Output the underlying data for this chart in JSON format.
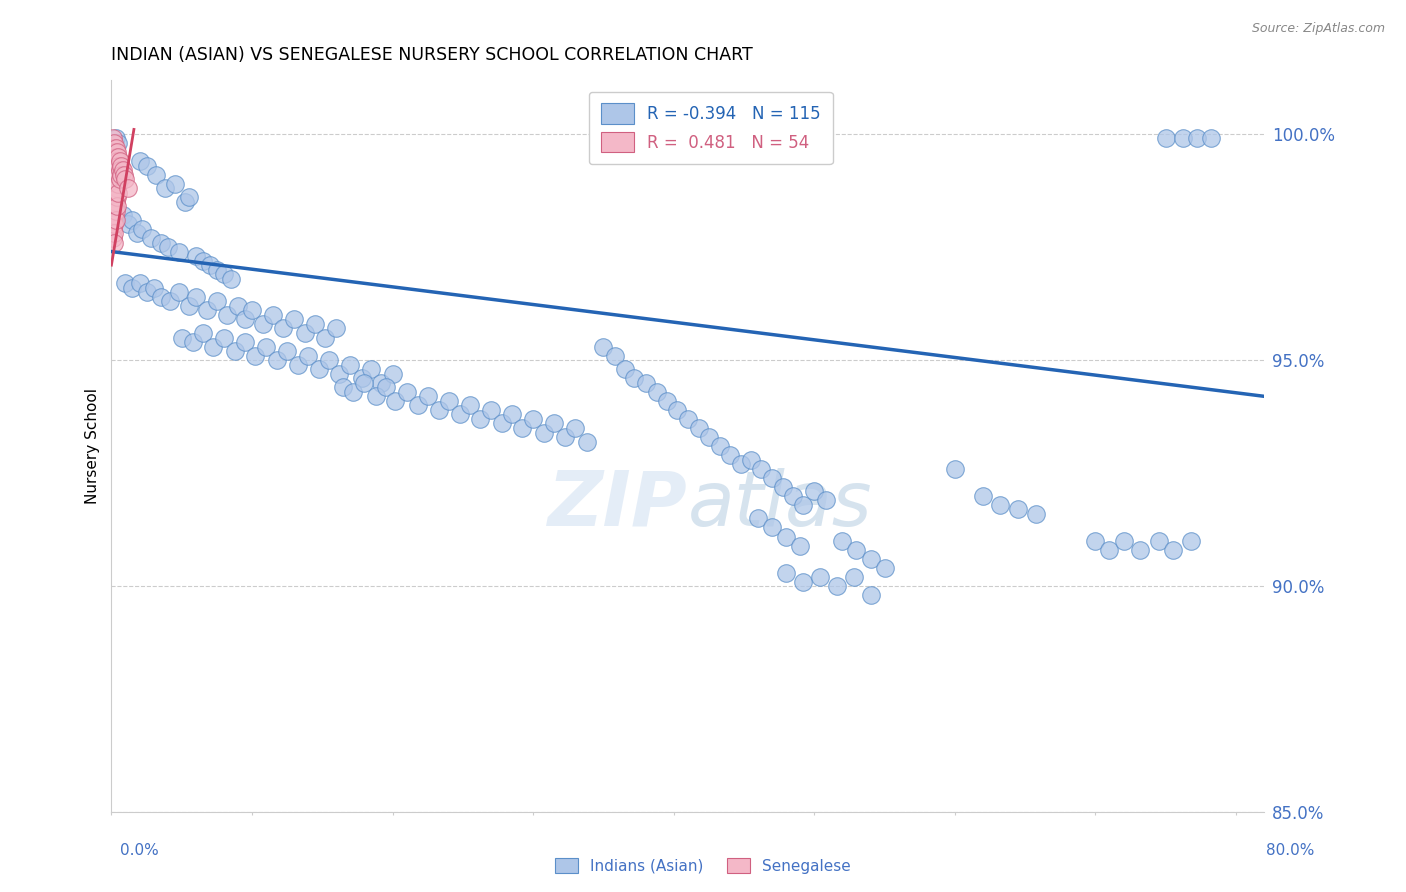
{
  "title": "INDIAN (ASIAN) VS SENEGALESE NURSERY SCHOOL CORRELATION CHART",
  "source": "Source: ZipAtlas.com",
  "ylabel": "Nursery School",
  "xlim": [
    0.0,
    0.82
  ],
  "ylim": [
    0.868,
    1.012
  ],
  "ytick_labels": [
    "100.0%",
    "95.0%",
    "90.0%",
    "85.0%"
  ],
  "ytick_values": [
    1.0,
    0.95,
    0.9,
    0.85
  ],
  "legend_r_blue": "-0.394",
  "legend_n_blue": "115",
  "legend_r_pink": " 0.481",
  "legend_n_pink": "54",
  "blue_color": "#aec6e8",
  "blue_edge_color": "#5b8fc9",
  "pink_color": "#f4b8c8",
  "pink_edge_color": "#d06080",
  "blue_line_color": "#2464b4",
  "pink_line_color": "#d04060",
  "axis_label_color": "#4472c4",
  "grid_color": "#cccccc",
  "blue_trend_x": [
    0.0,
    0.82
  ],
  "blue_trend_y": [
    0.974,
    0.942
  ],
  "pink_trend_x": [
    0.0,
    0.016
  ],
  "pink_trend_y": [
    0.971,
    1.001
  ],
  "blue_scatter": [
    [
      0.003,
      0.999
    ],
    [
      0.005,
      0.998
    ],
    [
      0.02,
      0.994
    ],
    [
      0.025,
      0.993
    ],
    [
      0.032,
      0.991
    ],
    [
      0.038,
      0.988
    ],
    [
      0.045,
      0.989
    ],
    [
      0.052,
      0.985
    ],
    [
      0.055,
      0.986
    ],
    [
      0.008,
      0.982
    ],
    [
      0.012,
      0.98
    ],
    [
      0.015,
      0.981
    ],
    [
      0.018,
      0.978
    ],
    [
      0.022,
      0.979
    ],
    [
      0.028,
      0.977
    ],
    [
      0.035,
      0.976
    ],
    [
      0.04,
      0.975
    ],
    [
      0.048,
      0.974
    ],
    [
      0.06,
      0.973
    ],
    [
      0.065,
      0.972
    ],
    [
      0.07,
      0.971
    ],
    [
      0.075,
      0.97
    ],
    [
      0.08,
      0.969
    ],
    [
      0.085,
      0.968
    ],
    [
      0.01,
      0.967
    ],
    [
      0.015,
      0.966
    ],
    [
      0.02,
      0.967
    ],
    [
      0.025,
      0.965
    ],
    [
      0.03,
      0.966
    ],
    [
      0.035,
      0.964
    ],
    [
      0.042,
      0.963
    ],
    [
      0.048,
      0.965
    ],
    [
      0.055,
      0.962
    ],
    [
      0.06,
      0.964
    ],
    [
      0.068,
      0.961
    ],
    [
      0.075,
      0.963
    ],
    [
      0.082,
      0.96
    ],
    [
      0.09,
      0.962
    ],
    [
      0.095,
      0.959
    ],
    [
      0.1,
      0.961
    ],
    [
      0.108,
      0.958
    ],
    [
      0.115,
      0.96
    ],
    [
      0.122,
      0.957
    ],
    [
      0.13,
      0.959
    ],
    [
      0.138,
      0.956
    ],
    [
      0.145,
      0.958
    ],
    [
      0.152,
      0.955
    ],
    [
      0.16,
      0.957
    ],
    [
      0.05,
      0.955
    ],
    [
      0.058,
      0.954
    ],
    [
      0.065,
      0.956
    ],
    [
      0.072,
      0.953
    ],
    [
      0.08,
      0.955
    ],
    [
      0.088,
      0.952
    ],
    [
      0.095,
      0.954
    ],
    [
      0.102,
      0.951
    ],
    [
      0.11,
      0.953
    ],
    [
      0.118,
      0.95
    ],
    [
      0.125,
      0.952
    ],
    [
      0.133,
      0.949
    ],
    [
      0.14,
      0.951
    ],
    [
      0.148,
      0.948
    ],
    [
      0.155,
      0.95
    ],
    [
      0.162,
      0.947
    ],
    [
      0.17,
      0.949
    ],
    [
      0.178,
      0.946
    ],
    [
      0.185,
      0.948
    ],
    [
      0.192,
      0.945
    ],
    [
      0.2,
      0.947
    ],
    [
      0.165,
      0.944
    ],
    [
      0.172,
      0.943
    ],
    [
      0.18,
      0.945
    ],
    [
      0.188,
      0.942
    ],
    [
      0.195,
      0.944
    ],
    [
      0.202,
      0.941
    ],
    [
      0.21,
      0.943
    ],
    [
      0.218,
      0.94
    ],
    [
      0.225,
      0.942
    ],
    [
      0.233,
      0.939
    ],
    [
      0.24,
      0.941
    ],
    [
      0.248,
      0.938
    ],
    [
      0.255,
      0.94
    ],
    [
      0.262,
      0.937
    ],
    [
      0.27,
      0.939
    ],
    [
      0.278,
      0.936
    ],
    [
      0.285,
      0.938
    ],
    [
      0.292,
      0.935
    ],
    [
      0.3,
      0.937
    ],
    [
      0.308,
      0.934
    ],
    [
      0.315,
      0.936
    ],
    [
      0.323,
      0.933
    ],
    [
      0.33,
      0.935
    ],
    [
      0.338,
      0.932
    ],
    [
      0.35,
      0.953
    ],
    [
      0.358,
      0.951
    ],
    [
      0.365,
      0.948
    ],
    [
      0.372,
      0.946
    ],
    [
      0.38,
      0.945
    ],
    [
      0.388,
      0.943
    ],
    [
      0.395,
      0.941
    ],
    [
      0.402,
      0.939
    ],
    [
      0.41,
      0.937
    ],
    [
      0.418,
      0.935
    ],
    [
      0.425,
      0.933
    ],
    [
      0.433,
      0.931
    ],
    [
      0.44,
      0.929
    ],
    [
      0.448,
      0.927
    ],
    [
      0.455,
      0.928
    ],
    [
      0.462,
      0.926
    ],
    [
      0.47,
      0.924
    ],
    [
      0.478,
      0.922
    ],
    [
      0.485,
      0.92
    ],
    [
      0.492,
      0.918
    ],
    [
      0.5,
      0.921
    ],
    [
      0.508,
      0.919
    ],
    [
      0.46,
      0.915
    ],
    [
      0.47,
      0.913
    ],
    [
      0.48,
      0.911
    ],
    [
      0.49,
      0.909
    ],
    [
      0.52,
      0.91
    ],
    [
      0.53,
      0.908
    ],
    [
      0.54,
      0.906
    ],
    [
      0.55,
      0.904
    ],
    [
      0.48,
      0.903
    ],
    [
      0.492,
      0.901
    ],
    [
      0.504,
      0.902
    ],
    [
      0.516,
      0.9
    ],
    [
      0.528,
      0.902
    ],
    [
      0.54,
      0.898
    ],
    [
      0.6,
      0.926
    ],
    [
      0.62,
      0.92
    ],
    [
      0.632,
      0.918
    ],
    [
      0.645,
      0.917
    ],
    [
      0.658,
      0.916
    ],
    [
      0.7,
      0.91
    ],
    [
      0.71,
      0.908
    ],
    [
      0.72,
      0.91
    ],
    [
      0.732,
      0.908
    ],
    [
      0.745,
      0.91
    ],
    [
      0.755,
      0.908
    ],
    [
      0.768,
      0.91
    ],
    [
      0.75,
      0.999
    ],
    [
      0.762,
      0.999
    ],
    [
      0.772,
      0.999
    ],
    [
      0.782,
      0.999
    ]
  ],
  "pink_scatter": [
    [
      0.001,
      0.999
    ],
    [
      0.001,
      0.997
    ],
    [
      0.001,
      0.995
    ],
    [
      0.001,
      0.993
    ],
    [
      0.001,
      0.991
    ],
    [
      0.001,
      0.989
    ],
    [
      0.001,
      0.987
    ],
    [
      0.001,
      0.985
    ],
    [
      0.001,
      0.983
    ],
    [
      0.001,
      0.981
    ],
    [
      0.001,
      0.979
    ],
    [
      0.001,
      0.977
    ],
    [
      0.002,
      0.998
    ],
    [
      0.002,
      0.996
    ],
    [
      0.002,
      0.994
    ],
    [
      0.002,
      0.992
    ],
    [
      0.002,
      0.99
    ],
    [
      0.002,
      0.988
    ],
    [
      0.002,
      0.986
    ],
    [
      0.002,
      0.984
    ],
    [
      0.002,
      0.982
    ],
    [
      0.002,
      0.98
    ],
    [
      0.002,
      0.978
    ],
    [
      0.002,
      0.976
    ],
    [
      0.003,
      0.997
    ],
    [
      0.003,
      0.995
    ],
    [
      0.003,
      0.993
    ],
    [
      0.003,
      0.991
    ],
    [
      0.003,
      0.989
    ],
    [
      0.003,
      0.987
    ],
    [
      0.003,
      0.985
    ],
    [
      0.003,
      0.983
    ],
    [
      0.003,
      0.981
    ],
    [
      0.004,
      0.996
    ],
    [
      0.004,
      0.994
    ],
    [
      0.004,
      0.992
    ],
    [
      0.004,
      0.99
    ],
    [
      0.004,
      0.988
    ],
    [
      0.004,
      0.986
    ],
    [
      0.004,
      0.984
    ],
    [
      0.005,
      0.995
    ],
    [
      0.005,
      0.993
    ],
    [
      0.005,
      0.991
    ],
    [
      0.005,
      0.989
    ],
    [
      0.005,
      0.987
    ],
    [
      0.006,
      0.994
    ],
    [
      0.006,
      0.992
    ],
    [
      0.006,
      0.99
    ],
    [
      0.007,
      0.993
    ],
    [
      0.007,
      0.991
    ],
    [
      0.008,
      0.992
    ],
    [
      0.009,
      0.991
    ],
    [
      0.01,
      0.99
    ],
    [
      0.012,
      0.988
    ]
  ]
}
